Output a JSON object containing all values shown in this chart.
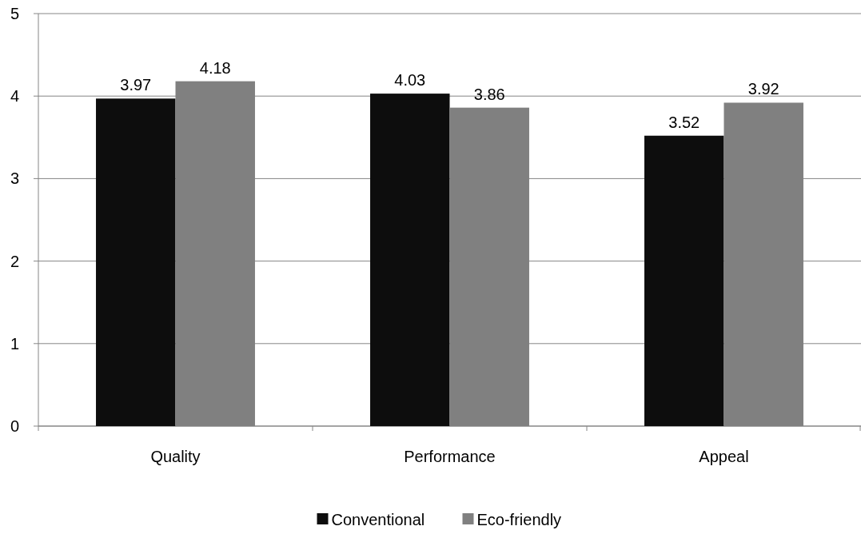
{
  "chart_data": {
    "type": "bar",
    "categories": [
      "Quality",
      "Performance",
      "Appeal"
    ],
    "series": [
      {
        "name": "Conventional",
        "color": "#0d0d0d",
        "values": [
          3.97,
          4.03,
          3.52
        ]
      },
      {
        "name": "Eco-friendly",
        "color": "#808080",
        "values": [
          4.18,
          3.86,
          3.92
        ]
      }
    ],
    "ylim": [
      0,
      5
    ],
    "yticks": [
      0,
      1,
      2,
      3,
      4,
      5
    ],
    "grid": "y",
    "legend": "bottom",
    "data_labels": true
  }
}
